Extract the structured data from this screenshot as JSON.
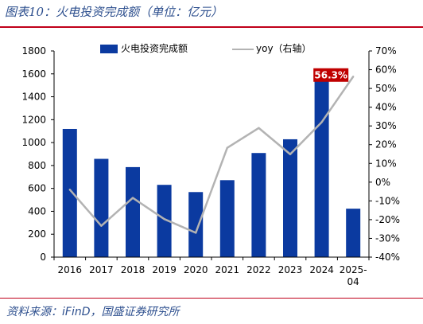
{
  "header": {
    "title": "图表10：火电投资完成额（单位：亿元）"
  },
  "footer": {
    "source": "资料来源：iFinD，国盛证券研究所"
  },
  "chart_data": {
    "type": "bar",
    "categories": [
      "2016",
      "2017",
      "2018",
      "2019",
      "2020",
      "2021",
      "2022",
      "2023",
      "2024",
      "2025-04"
    ],
    "category_display": [
      [
        "2016"
      ],
      [
        "2017"
      ],
      [
        "2018"
      ],
      [
        "2019"
      ],
      [
        "2020"
      ],
      [
        "2021"
      ],
      [
        "2022"
      ],
      [
        "2023"
      ],
      [
        "2024"
      ],
      [
        "2025-",
        "04"
      ]
    ],
    "series": [
      {
        "name": "火电投资完成额",
        "type": "bar",
        "axis": "left",
        "color": "#0b3aa0",
        "values": [
          1119,
          858,
          786,
          631,
          568,
          672,
          909,
          1029,
          1589,
          423
        ]
      },
      {
        "name": "yoy（右轴）",
        "type": "line",
        "axis": "right",
        "color": "#b3b3b3",
        "values": [
          -4.0,
          -23.3,
          -8.4,
          -19.7,
          -27.0,
          18.3,
          28.9,
          14.9,
          32.0,
          56.3
        ]
      }
    ],
    "left_axis": {
      "min": 0,
      "max": 1800,
      "step": 200,
      "ticks": [
        "0",
        "200",
        "400",
        "600",
        "800",
        "1000",
        "1200",
        "1400",
        "1600",
        "1800"
      ]
    },
    "right_axis": {
      "min": -40,
      "max": 70,
      "step": 10,
      "ticks": [
        "-40%",
        "-30%",
        "-20%",
        "-10%",
        "0%",
        "10%",
        "20%",
        "30%",
        "40%",
        "50%",
        "60%",
        "70%"
      ]
    },
    "annotation": {
      "text": "56.3%",
      "series": "yoy（右轴）",
      "index": 9,
      "color": "#c00000"
    },
    "legend": "top",
    "grid": false
  }
}
